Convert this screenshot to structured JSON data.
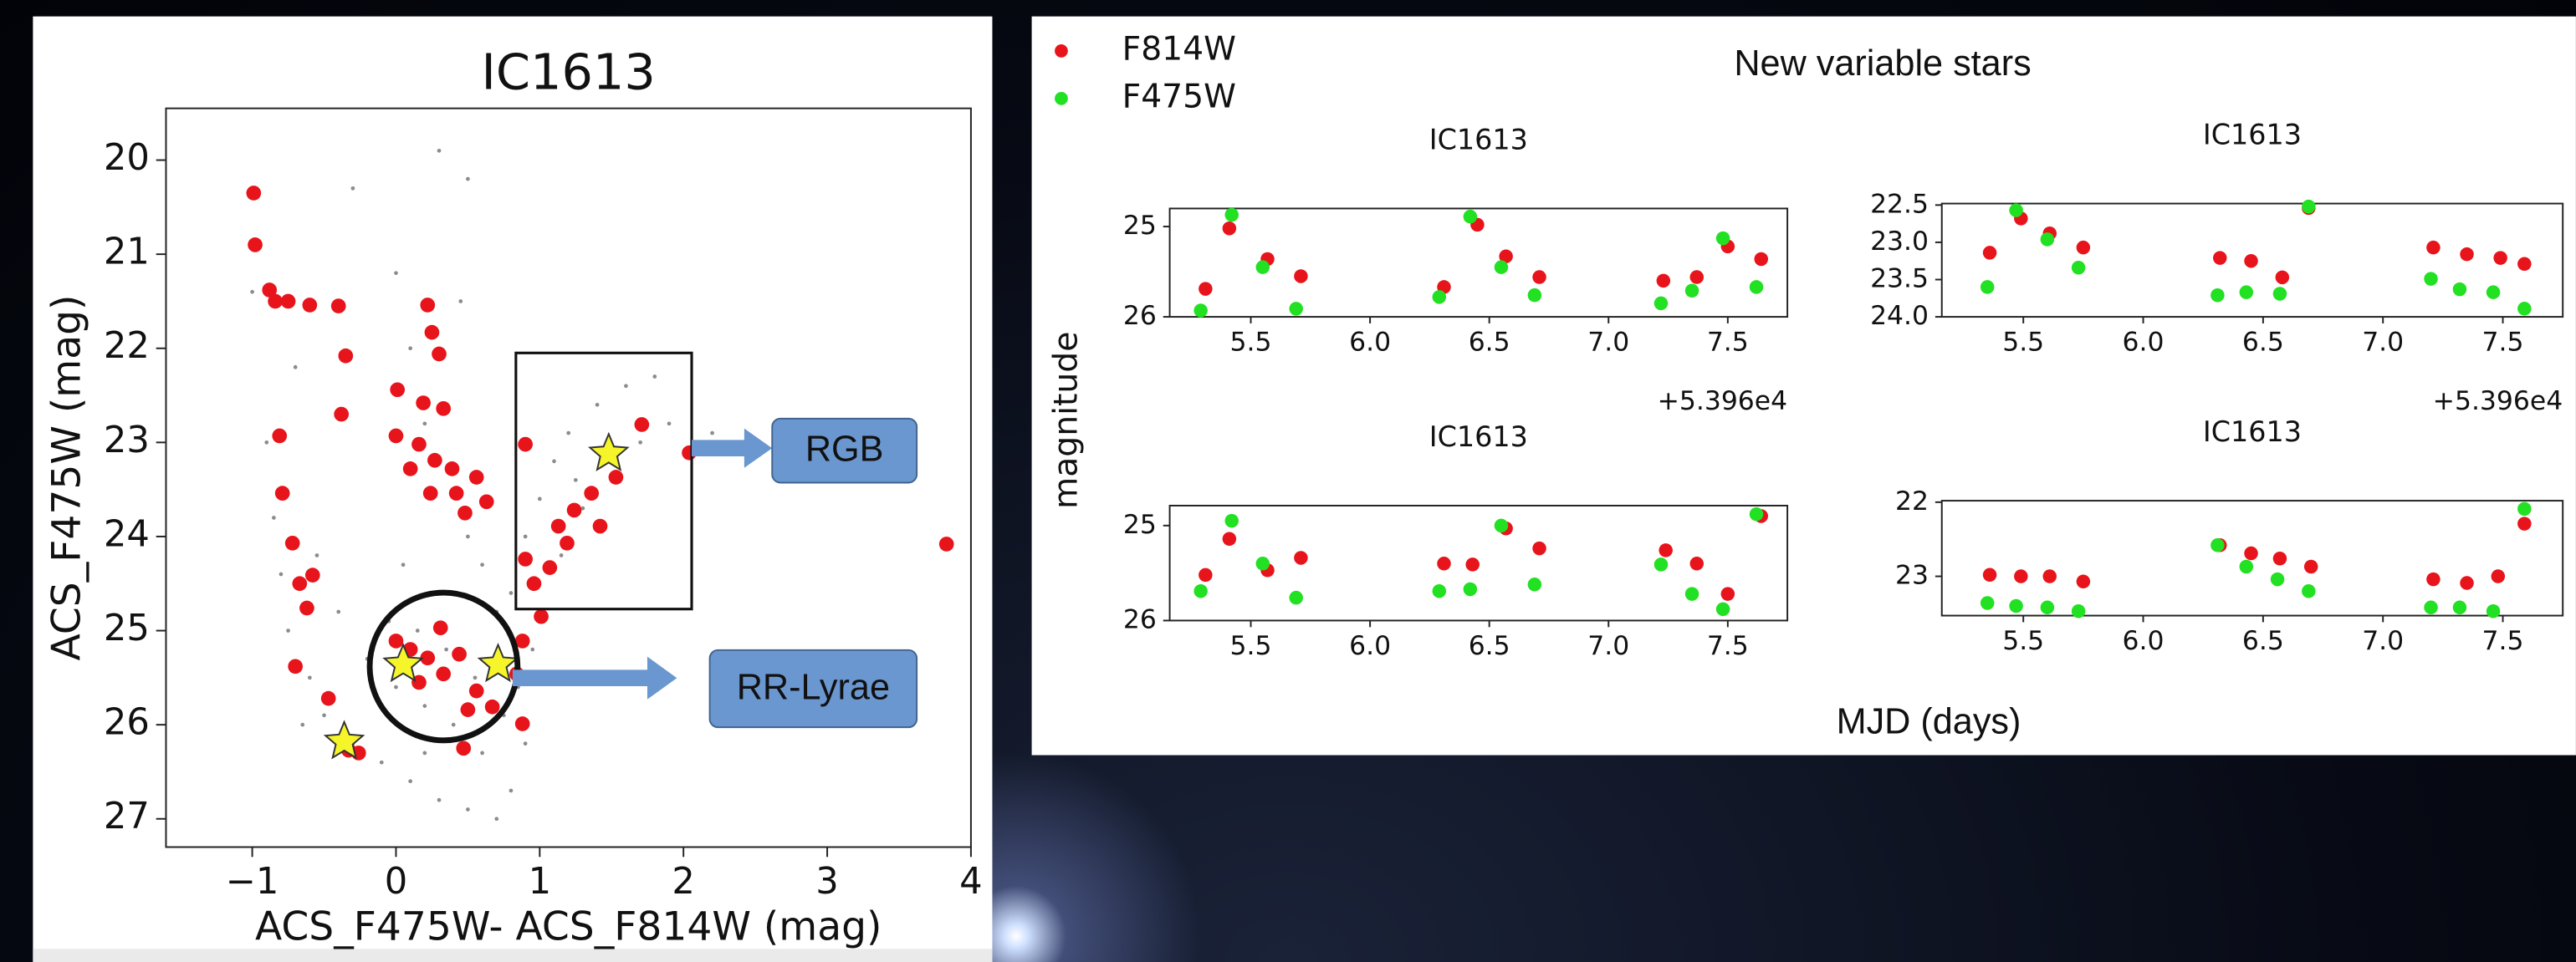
{
  "chart_data": [
    {
      "type": "scatter",
      "title": "IC1613",
      "xlabel": "ACS_F475W- ACS_F814W (mag)",
      "ylabel": "ACS_F475W (mag)",
      "xlim": [
        -1.6,
        4
      ],
      "ylim": [
        27.3,
        19.45
      ],
      "xticks": [
        {
          "value": -1,
          "label": "−1"
        },
        0,
        1,
        2,
        3,
        4
      ],
      "yticks": [
        20,
        21,
        22,
        23,
        24,
        25,
        26,
        27
      ],
      "annotations": [
        "RGB",
        "RR-Lyrae"
      ],
      "series": [
        {
          "color": "#8c8c8c",
          "marker": "dot",
          "x": [
            -0.9,
            -0.85,
            -0.8,
            -0.75,
            -0.6,
            -0.5,
            -0.3,
            -0.1,
            0.1,
            0.3,
            0.5,
            0.7,
            0.8,
            0.6,
            0.4,
            0.2,
            0.0,
            -0.2,
            -0.4,
            -0.55,
            0.9,
            0.85,
            0.75,
            0.55,
            0.35,
            0.15,
            -0.05,
            0.0,
            0.1,
            0.2,
            0.4,
            0.5,
            0.6,
            0.8,
            0.9,
            1.0,
            1.1,
            1.2,
            1.4,
            1.6,
            1.8,
            1.9,
            1.7,
            1.3,
            1.15,
            1.0,
            -0.3,
            0.3,
            0.5,
            -0.65,
            0.2,
            0.95,
            1.25,
            2.2,
            0.05,
            0.7,
            -0.7,
            -1.0,
            0.45
          ],
          "values": [
            23.0,
            23.8,
            24.4,
            25.0,
            25.5,
            25.9,
            26.2,
            26.4,
            26.6,
            26.8,
            26.9,
            27.0,
            26.7,
            26.3,
            26.0,
            25.8,
            25.6,
            25.3,
            24.8,
            24.2,
            26.2,
            25.6,
            25.9,
            25.5,
            25.2,
            25.0,
            24.9,
            21.2,
            22.0,
            22.8,
            23.5,
            24.0,
            24.3,
            24.6,
            24.0,
            23.6,
            23.2,
            22.9,
            22.6,
            22.4,
            22.3,
            22.8,
            23.0,
            23.7,
            24.2,
            24.8,
            20.3,
            19.9,
            20.2,
            26.0,
            26.3,
            25.2,
            23.4,
            22.9,
            24.3,
            24.8,
            22.2,
            21.4,
            21.5
          ]
        },
        {
          "color": "#e8141b",
          "marker": "circle",
          "x": [
            -0.99,
            -0.98,
            -0.88,
            -0.84,
            -0.75,
            -0.6,
            -0.4,
            -0.35,
            -0.81,
            -0.79,
            -0.72,
            -0.67,
            -0.62,
            -0.7,
            -0.47,
            -0.33,
            -0.26,
            -0.58,
            0.22,
            0.25,
            0.3,
            0.01,
            0.19,
            0.33,
            0.0,
            0.16,
            0.27,
            0.39,
            0.56,
            0.24,
            0.42,
            0.63,
            0.48,
            -0.38,
            0.1,
            0.1,
            0.22,
            0.33,
            0.44,
            0.16,
            0.56,
            0.67,
            0.31,
            0.0,
            0.5,
            0.47,
            0.9,
            0.9,
            0.96,
            1.01,
            0.88,
            0.84,
            0.88,
            1.13,
            1.24,
            1.36,
            1.19,
            1.07,
            1.42,
            1.53,
            1.71,
            2.04,
            3.83
          ],
          "values": [
            20.35,
            20.9,
            21.38,
            21.5,
            21.5,
            21.54,
            21.55,
            22.08,
            22.93,
            23.54,
            24.07,
            24.5,
            24.76,
            25.38,
            25.72,
            26.27,
            26.3,
            24.41,
            21.54,
            21.83,
            22.06,
            22.44,
            22.58,
            22.64,
            22.93,
            23.02,
            23.19,
            23.28,
            23.37,
            23.54,
            23.54,
            23.63,
            23.75,
            22.7,
            23.28,
            25.2,
            25.29,
            25.46,
            25.25,
            25.55,
            25.64,
            25.81,
            24.97,
            25.11,
            25.84,
            26.25,
            23.02,
            24.24,
            24.5,
            24.85,
            25.11,
            25.46,
            25.99,
            23.89,
            23.72,
            23.54,
            24.07,
            24.33,
            23.89,
            23.37,
            22.81,
            23.11,
            24.08
          ]
        },
        {
          "color": "#f5f52a",
          "marker": "star",
          "x": [
            1.48,
            0.05,
            0.71,
            -0.36
          ],
          "values": [
            23.12,
            25.36,
            25.36,
            26.18
          ]
        }
      ]
    },
    {
      "type": "scatter",
      "title": "New variable stars",
      "xlabel": "MJD (days)",
      "ylabel": "magnitude",
      "legend": "upper left",
      "series": [
        {
          "name": "F814W",
          "color": "#e8141b"
        },
        {
          "name": "F475W",
          "color": "#22e022"
        }
      ],
      "panels": [
        {
          "title": "IC1613",
          "xlim": [
            5.16,
            7.75
          ],
          "ylim": [
            26.0,
            24.8
          ],
          "offset_label": "+5.396e4",
          "xticks": [
            5.5,
            {
              "value": 6,
              "label": "6.0"
            },
            6.5,
            {
              "value": 7,
              "label": "7.0"
            },
            7.5
          ],
          "yticks": [
            25,
            26
          ],
          "data": [
            {
              "x": [
                5.31,
                5.41,
                5.57,
                5.71,
                6.31,
                6.45,
                6.57,
                6.71,
                7.23,
                7.37,
                7.5,
                7.64
              ],
              "values": [
                25.69,
                25.02,
                25.36,
                25.55,
                25.67,
                24.98,
                25.33,
                25.56,
                25.6,
                25.56,
                25.22,
                25.36
              ]
            },
            {
              "x": [
                5.29,
                5.42,
                5.55,
                5.69,
                6.29,
                6.42,
                6.55,
                6.69,
                7.22,
                7.35,
                7.48,
                7.62
              ],
              "values": [
                25.93,
                24.87,
                25.45,
                25.91,
                25.78,
                24.89,
                25.45,
                25.76,
                25.85,
                25.71,
                25.13,
                25.67
              ]
            }
          ]
        },
        {
          "title": "IC1613",
          "xlim": [
            5.16,
            7.75
          ],
          "ylim": [
            24.0,
            22.48
          ],
          "offset_label": "+5.396e4",
          "xticks": [
            5.5,
            {
              "value": 6,
              "label": "6.0"
            },
            6.5,
            {
              "value": 7,
              "label": "7.0"
            },
            7.5
          ],
          "yticks": [
            22.5,
            {
              "value": 23,
              "label": "23.0"
            },
            23.5,
            {
              "value": 24,
              "label": "24.0"
            }
          ],
          "data": [
            {
              "x": [
                5.36,
                5.49,
                5.61,
                5.75,
                6.32,
                6.45,
                6.58,
                6.69,
                7.21,
                7.35,
                7.49,
                7.59
              ],
              "values": [
                23.14,
                22.68,
                22.88,
                23.07,
                23.21,
                23.25,
                23.47,
                22.54,
                23.07,
                23.16,
                23.21,
                23.29
              ]
            },
            {
              "x": [
                5.35,
                5.47,
                5.6,
                5.73,
                6.31,
                6.43,
                6.57,
                6.69,
                7.2,
                7.32,
                7.46,
                7.59
              ],
              "values": [
                23.6,
                22.57,
                22.96,
                23.34,
                23.71,
                23.67,
                23.69,
                22.52,
                23.49,
                23.63,
                23.67,
                23.89
              ]
            }
          ]
        },
        {
          "title": "IC1613",
          "xlim": [
            5.16,
            7.75
          ],
          "ylim": [
            26.0,
            24.79
          ],
          "xticks": [
            5.5,
            {
              "value": 6,
              "label": "6.0"
            },
            6.5,
            {
              "value": 7,
              "label": "7.0"
            },
            7.5
          ],
          "yticks": [
            25,
            26
          ],
          "data": [
            {
              "x": [
                5.31,
                5.41,
                5.57,
                5.71,
                6.31,
                6.43,
                6.57,
                6.71,
                7.24,
                7.37,
                7.5,
                7.64
              ],
              "values": [
                25.52,
                25.14,
                25.47,
                25.34,
                25.4,
                25.41,
                25.03,
                25.24,
                25.26,
                25.4,
                25.72,
                24.9
              ]
            },
            {
              "x": [
                5.29,
                5.42,
                5.55,
                5.69,
                6.29,
                6.42,
                6.55,
                6.69,
                7.22,
                7.35,
                7.48,
                7.62
              ],
              "values": [
                25.69,
                24.95,
                25.4,
                25.76,
                25.69,
                25.67,
                25.0,
                25.62,
                25.41,
                25.72,
                25.88,
                24.88
              ]
            }
          ]
        },
        {
          "title": "IC1613",
          "xlim": [
            5.16,
            7.75
          ],
          "ylim": [
            23.53,
            21.98
          ],
          "xticks": [
            5.5,
            {
              "value": 6,
              "label": "6.0"
            },
            6.5,
            {
              "value": 7,
              "label": "7.0"
            },
            7.5
          ],
          "yticks": [
            22,
            23
          ],
          "data": [
            {
              "x": [
                5.36,
                5.49,
                5.61,
                5.75,
                6.32,
                6.45,
                6.57,
                6.7,
                7.21,
                7.35,
                7.48,
                7.59
              ],
              "values": [
                22.98,
                23.0,
                23.0,
                23.07,
                22.58,
                22.69,
                22.76,
                22.87,
                23.04,
                23.09,
                23.0,
                22.29
              ]
            },
            {
              "x": [
                5.35,
                5.47,
                5.6,
                5.73,
                6.31,
                6.43,
                6.56,
                6.69,
                7.2,
                7.32,
                7.46,
                7.59
              ],
              "values": [
                23.36,
                23.4,
                23.42,
                23.47,
                22.58,
                22.87,
                23.04,
                23.2,
                23.42,
                23.42,
                23.47,
                22.09
              ]
            }
          ]
        }
      ]
    }
  ]
}
